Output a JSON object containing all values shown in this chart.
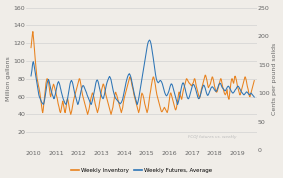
{
  "ylabel_left": "Million gallons",
  "ylabel_right": "Cents per pound solids",
  "ylim_left": [
    0,
    160
  ],
  "ylim_right": [
    0,
    250
  ],
  "yticks_left": [
    20,
    40,
    60,
    80,
    100,
    120,
    140,
    160
  ],
  "yticks_right": [
    0,
    50,
    100,
    150,
    200,
    250
  ],
  "xticks": [
    2010,
    2011,
    2012,
    2013,
    2014,
    2015,
    2016,
    2017,
    2018,
    2019
  ],
  "xlim": [
    2009.7,
    2019.85
  ],
  "legend_labels": [
    "Weekly Inventory",
    "Weekly Futures, Average"
  ],
  "color_inventory": "#E8821E",
  "color_futures": "#2E75B6",
  "watermark": "FCOJ futures vs. weekly",
  "bg_color": "#f0ede8",
  "inventory": [
    115,
    120,
    125,
    130,
    133,
    128,
    122,
    115,
    108,
    102,
    96,
    90,
    85,
    80,
    78,
    75,
    72,
    70,
    67,
    64,
    60,
    56,
    52,
    48,
    44,
    42,
    45,
    50,
    55,
    60,
    65,
    70,
    75,
    78,
    80,
    80,
    79,
    77,
    74,
    70,
    66,
    62,
    60,
    62,
    65,
    68,
    70,
    72,
    74,
    73,
    71,
    69,
    67,
    65,
    62,
    60,
    58,
    55,
    52,
    50,
    48,
    45,
    43,
    42,
    44,
    47,
    50,
    53,
    55,
    52,
    49,
    46,
    43,
    42,
    45,
    48,
    52,
    56,
    58,
    56,
    53,
    50,
    47,
    44,
    42,
    40,
    42,
    44,
    47,
    50,
    53,
    56,
    58,
    60,
    62,
    64,
    66,
    68,
    70,
    72,
    74,
    76,
    78,
    80,
    80,
    78,
    75,
    72,
    68,
    65,
    62,
    60,
    58,
    56,
    54,
    52,
    50,
    48,
    46,
    44,
    42,
    40,
    42,
    44,
    46,
    49,
    52,
    55,
    58,
    60,
    62,
    64,
    64,
    62,
    60,
    58,
    55,
    52,
    50,
    48,
    46,
    44,
    42,
    44,
    46,
    48,
    52,
    55,
    58,
    62,
    65,
    68,
    70,
    72,
    74,
    74,
    72,
    70,
    68,
    65,
    62,
    60,
    58,
    56,
    54,
    52,
    50,
    48,
    46,
    44,
    42,
    40,
    42,
    44,
    46,
    48,
    52,
    55,
    58,
    62,
    64,
    65,
    63,
    62,
    60,
    58,
    56,
    54,
    52,
    50,
    48,
    46,
    44,
    42,
    44,
    46,
    48,
    52,
    55,
    58,
    60,
    62,
    64,
    66,
    68,
    70,
    72,
    74,
    76,
    78,
    80,
    82,
    82,
    80,
    78,
    75,
    72,
    70,
    68,
    65,
    62,
    60,
    58,
    56,
    54,
    52,
    50,
    48,
    46,
    44,
    42,
    44,
    46,
    50,
    54,
    58,
    62,
    64,
    63,
    62,
    60,
    58,
    55,
    52,
    50,
    48,
    46,
    44,
    42,
    44,
    46,
    50,
    54,
    58,
    62,
    65,
    68,
    72,
    75,
    78,
    80,
    82,
    82,
    80,
    78,
    75,
    72,
    68,
    65,
    62,
    60,
    58,
    56,
    54,
    52,
    50,
    48,
    46,
    44,
    43,
    43,
    44,
    45,
    46,
    47,
    48,
    47,
    46,
    45,
    44,
    43,
    42,
    44,
    46,
    50,
    54,
    58,
    62,
    64,
    64,
    62,
    60,
    58,
    56,
    54,
    52,
    50,
    48,
    46,
    45,
    46,
    48,
    52,
    55,
    58,
    62,
    65,
    65,
    63,
    61,
    60,
    58,
    57,
    60,
    63,
    66,
    68,
    70,
    72,
    74,
    76,
    78,
    80,
    80,
    79,
    78,
    77,
    76,
    75,
    75,
    74,
    73,
    73,
    72,
    73,
    74,
    75,
    76,
    78,
    80,
    80,
    78,
    75,
    72,
    70,
    68,
    66,
    64,
    62,
    60,
    58,
    60,
    62,
    65,
    68,
    70,
    72,
    74,
    76,
    78,
    80,
    82,
    84,
    84,
    82,
    80,
    78,
    75,
    72,
    70,
    71,
    72,
    73,
    74,
    76,
    78,
    80,
    82,
    82,
    80,
    78,
    75,
    72,
    70,
    68,
    66,
    65,
    65,
    66,
    68,
    70,
    72,
    74,
    76,
    78,
    80,
    80,
    78,
    75,
    72,
    70,
    68,
    66,
    64,
    63,
    62,
    63,
    64,
    66,
    68,
    62,
    60,
    58,
    57,
    62,
    66,
    70,
    75,
    78,
    80,
    80,
    78,
    76,
    75,
    78,
    82,
    83,
    82,
    80,
    78,
    75,
    72,
    70,
    68,
    66,
    64,
    62,
    62,
    64,
    66,
    68,
    70,
    72,
    74,
    76,
    78,
    80,
    82,
    82,
    80,
    78,
    75,
    72,
    70,
    68,
    65,
    62,
    60,
    60,
    62,
    64,
    66,
    68,
    70,
    72,
    74,
    76,
    78
  ],
  "futures": [
    130,
    135,
    140,
    148,
    153,
    155,
    152,
    147,
    143,
    138,
    133,
    127,
    122,
    116,
    111,
    106,
    101,
    97,
    94,
    92,
    90,
    88,
    86,
    84,
    83,
    82,
    81,
    80,
    82,
    86,
    90,
    95,
    100,
    106,
    112,
    117,
    120,
    122,
    124,
    122,
    119,
    115,
    111,
    107,
    104,
    101,
    98,
    96,
    94,
    92,
    90,
    92,
    95,
    98,
    102,
    106,
    110,
    114,
    117,
    119,
    120,
    118,
    116,
    113,
    109,
    106,
    102,
    99,
    96,
    93,
    90,
    88,
    86,
    84,
    82,
    81,
    80,
    82,
    85,
    88,
    92,
    97,
    102,
    107,
    112,
    116,
    119,
    121,
    122,
    121,
    119,
    116,
    112,
    108,
    104,
    100,
    97,
    94,
    91,
    88,
    85,
    82,
    80,
    82,
    85,
    88,
    92,
    96,
    100,
    104,
    107,
    110,
    112,
    113,
    113,
    112,
    110,
    108,
    106,
    104,
    102,
    100,
    97,
    95,
    93,
    91,
    89,
    87,
    85,
    83,
    81,
    80,
    82,
    85,
    88,
    92,
    96,
    100,
    104,
    108,
    113,
    117,
    120,
    122,
    123,
    122,
    120,
    117,
    113,
    109,
    106,
    102,
    99,
    96,
    94,
    92,
    91,
    90,
    92,
    95,
    98,
    102,
    106,
    110,
    114,
    117,
    120,
    122,
    124,
    126,
    128,
    129,
    128,
    126,
    124,
    120,
    116,
    112,
    108,
    104,
    101,
    98,
    95,
    93,
    91,
    90,
    89,
    88,
    87,
    86,
    85,
    84,
    83,
    82,
    81,
    82,
    83,
    84,
    86,
    88,
    91,
    95,
    99,
    103,
    107,
    111,
    115,
    119,
    122,
    125,
    128,
    130,
    132,
    133,
    134,
    133,
    131,
    129,
    126,
    122,
    118,
    114,
    110,
    106,
    102,
    98,
    95,
    92,
    89,
    86,
    83,
    80,
    82,
    85,
    89,
    93,
    98,
    103,
    108,
    113,
    118,
    123,
    128,
    133,
    138,
    143,
    148,
    153,
    158,
    163,
    168,
    173,
    178,
    182,
    186,
    189,
    191,
    192,
    193,
    192,
    190,
    187,
    183,
    178,
    173,
    167,
    162,
    156,
    150,
    144,
    138,
    133,
    128,
    124,
    122,
    120,
    119,
    118,
    119,
    120,
    121,
    122,
    122,
    121,
    120,
    118,
    116,
    113,
    110,
    107,
    104,
    101,
    99,
    97,
    96,
    95,
    96,
    97,
    99,
    101,
    103,
    106,
    109,
    112,
    114,
    116,
    116,
    115,
    113,
    110,
    107,
    104,
    101,
    98,
    95,
    92,
    89,
    86,
    83,
    80,
    82,
    85,
    88,
    92,
    96,
    100,
    104,
    108,
    112,
    115,
    117,
    118,
    117,
    115,
    112,
    109,
    106,
    102,
    99,
    96,
    93,
    91,
    90,
    90,
    92,
    94,
    97,
    100,
    103,
    106,
    109,
    112,
    114,
    115,
    115,
    114,
    112,
    110,
    108,
    105,
    102,
    99,
    96,
    93,
    91,
    90,
    91,
    92,
    94,
    97,
    100,
    103,
    106,
    109,
    111,
    113,
    114,
    113,
    111,
    109,
    106,
    103,
    100,
    98,
    96,
    96,
    97,
    99,
    101,
    103,
    105,
    107,
    109,
    110,
    111,
    111,
    110,
    109,
    108,
    106,
    105,
    104,
    103,
    103,
    104,
    106,
    108,
    110,
    113,
    115,
    116,
    117,
    117,
    116,
    114,
    112,
    110,
    109,
    108,
    107,
    106,
    105,
    104,
    104,
    105,
    107,
    108,
    110,
    111,
    112,
    112,
    111,
    109,
    108,
    106,
    105,
    103,
    102,
    101,
    100,
    100,
    101,
    102,
    103,
    105,
    106,
    107,
    108,
    110,
    111,
    112,
    112,
    111,
    110,
    108,
    107,
    105,
    104,
    102,
    101,
    100,
    99,
    98,
    97,
    97,
    98,
    99,
    100,
    101,
    102,
    102,
    101,
    100,
    99,
    98,
    97,
    97,
    98,
    99,
    100,
    99,
    98,
    97,
    96,
    95,
    94,
    93
  ]
}
